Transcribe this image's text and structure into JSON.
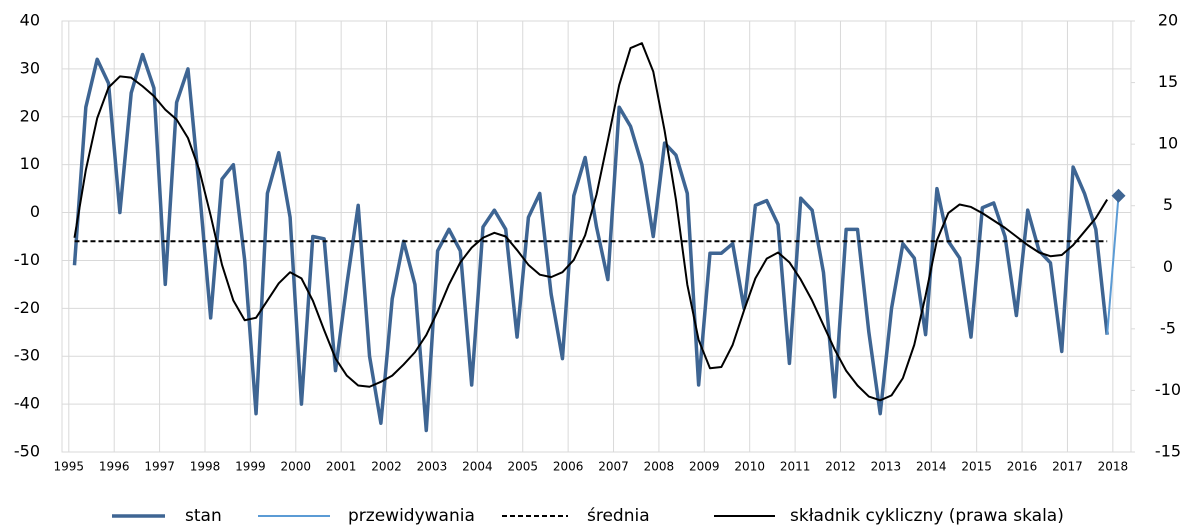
{
  "chart_data": {
    "type": "line",
    "x": [
      1995.125,
      1995.375,
      1995.625,
      1995.875,
      1996.125,
      1996.375,
      1996.625,
      1996.875,
      1997.125,
      1997.375,
      1997.625,
      1997.875,
      1998.125,
      1998.375,
      1998.625,
      1998.875,
      1999.125,
      1999.375,
      1999.625,
      1999.875,
      2000.125,
      2000.375,
      2000.625,
      2000.875,
      2001.125,
      2001.375,
      2001.625,
      2001.875,
      2002.125,
      2002.375,
      2002.625,
      2002.875,
      2003.125,
      2003.375,
      2003.625,
      2003.875,
      2004.125,
      2004.375,
      2004.625,
      2004.875,
      2005.125,
      2005.375,
      2005.625,
      2005.875,
      2006.125,
      2006.375,
      2006.625,
      2006.875,
      2007.125,
      2007.375,
      2007.625,
      2007.875,
      2008.125,
      2008.375,
      2008.625,
      2008.875,
      2009.125,
      2009.375,
      2009.625,
      2009.875,
      2010.125,
      2010.375,
      2010.625,
      2010.875,
      2011.125,
      2011.375,
      2011.625,
      2011.875,
      2012.125,
      2012.375,
      2012.625,
      2012.875,
      2013.125,
      2013.375,
      2013.625,
      2013.875,
      2014.125,
      2014.375,
      2014.625,
      2014.875,
      2015.125,
      2015.375,
      2015.625,
      2015.875,
      2016.125,
      2016.375,
      2016.625,
      2016.875,
      2017.125,
      2017.375,
      2017.625,
      2017.875
    ],
    "xlim": [
      1994.85,
      2018.4
    ],
    "xticks": [
      1995,
      1996,
      1997,
      1998,
      1999,
      2000,
      2001,
      2002,
      2003,
      2004,
      2005,
      2006,
      2007,
      2008,
      2009,
      2010,
      2011,
      2012,
      2013,
      2014,
      2015,
      2016,
      2017,
      2018
    ],
    "ylim": [
      -50,
      40
    ],
    "yticks": [
      -50,
      -40,
      -30,
      -20,
      -10,
      0,
      10,
      20,
      30,
      40
    ],
    "y2lim": [
      -15,
      20
    ],
    "y2ticks": [
      -15,
      -10,
      -5,
      0,
      5,
      10,
      15,
      20
    ],
    "grid": true,
    "legend": "bottom",
    "series": [
      {
        "name": "stan",
        "color": "#3e6593",
        "width": 3.5,
        "values": [
          -11,
          22,
          32,
          27,
          0,
          25,
          33,
          26,
          -15,
          23,
          30,
          5,
          -22,
          7,
          10,
          -10,
          -42,
          4,
          12.5,
          -1,
          -40,
          -5,
          -5.5,
          -33,
          -15,
          1.5,
          -30,
          -44,
          -18,
          -6,
          -15,
          -45.5,
          -8,
          -3.5,
          -8,
          -36,
          -3,
          0.5,
          -3.5,
          -26,
          -1,
          4,
          -17,
          -30.5,
          3.5,
          11.5,
          -3,
          -14,
          22,
          18,
          10,
          -5,
          14.5,
          12,
          4,
          -36,
          -8.5,
          -8.5,
          -6.5,
          -20,
          1.5,
          2.5,
          -2.5,
          -31.5,
          3,
          0.5,
          -12.5,
          -38.5,
          -3.5,
          -3.5,
          -25,
          -42,
          -20,
          -6.5,
          -9.5,
          -25.5,
          5,
          -6,
          -9.5,
          -26,
          1,
          2,
          -5,
          -21.5,
          0.5,
          -8,
          -10.5,
          -29,
          9.5,
          4,
          -3.5,
          -25.5
        ]
      },
      {
        "name": "przewidywania",
        "color": "#5b9bd5",
        "width": 2,
        "marker": "diamond",
        "marker_color": "#3e6593",
        "x": [
          2017.875,
          2018.125
        ],
        "values": [
          -25.5,
          3.5
        ]
      },
      {
        "name": "średnia",
        "color": "#000000",
        "width": 2,
        "dash": true,
        "value": -6
      },
      {
        "name": "składnik cykliczny (prawa skala)",
        "color": "#000000",
        "width": 2,
        "axis": "y2",
        "values": [
          2.4,
          7.9,
          12.1,
          14.6,
          15.5,
          15.4,
          14.7,
          13.9,
          12.8,
          12.0,
          10.5,
          7.9,
          4.2,
          0.2,
          -2.7,
          -4.3,
          -4.1,
          -2.7,
          -1.3,
          -0.4,
          -0.9,
          -2.7,
          -5.1,
          -7.4,
          -8.8,
          -9.6,
          -9.7,
          -9.3,
          -8.8,
          -7.9,
          -6.9,
          -5.5,
          -3.6,
          -1.4,
          0.4,
          1.6,
          2.4,
          2.8,
          2.5,
          1.4,
          0.2,
          -0.6,
          -0.8,
          -0.4,
          0.6,
          2.6,
          5.9,
          10.3,
          14.8,
          17.8,
          18.2,
          15.9,
          11.1,
          5.5,
          -1.4,
          -5.9,
          -8.2,
          -8.1,
          -6.3,
          -3.5,
          -0.9,
          0.7,
          1.2,
          0.4,
          -1.0,
          -2.7,
          -4.7,
          -6.7,
          -8.4,
          -9.6,
          -10.5,
          -10.8,
          -10.4,
          -9.0,
          -6.3,
          -2.3,
          2.2,
          4.4,
          5.1,
          4.9,
          4.4,
          3.8,
          3.2,
          2.5,
          1.8,
          1.2,
          0.9,
          1.0,
          1.8,
          2.9,
          4.0,
          5.5
        ]
      }
    ]
  }
}
